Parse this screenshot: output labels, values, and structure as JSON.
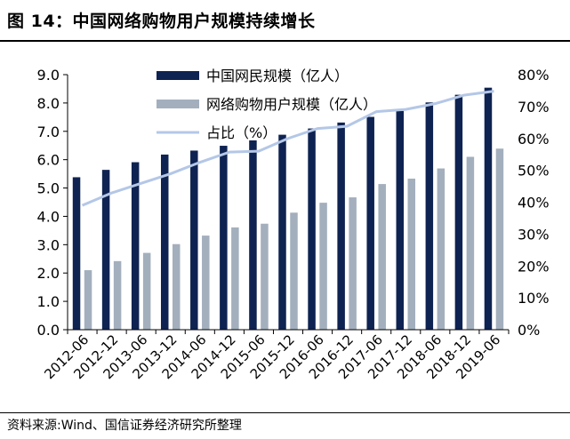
{
  "figure": {
    "title": "图 14：中国网络购物用户规模持续增长",
    "source": "资料来源:Wind、国信证券经济研究所整理"
  },
  "colors": {
    "netizens": "#0f2352",
    "shoppers": "#a3afbd",
    "share": "#b4c7e7"
  },
  "chart_data": {
    "type": "bar",
    "title": "中国网络购物用户规模持续增长",
    "categories": [
      "2012-06",
      "2012-12",
      "2013-06",
      "2013-12",
      "2014-06",
      "2014-12",
      "2015-06",
      "2015-12",
      "2016-06",
      "2016-12",
      "2017-06",
      "2017-12",
      "2018-06",
      "2018-12",
      "2019-06"
    ],
    "series": [
      {
        "name": "中国网民规模（亿人）",
        "axis": "left",
        "kind": "bar",
        "values": [
          5.38,
          5.64,
          5.91,
          6.18,
          6.32,
          6.49,
          6.68,
          6.88,
          7.1,
          7.31,
          7.51,
          7.72,
          8.02,
          8.29,
          8.54
        ]
      },
      {
        "name": "网络购物用户规模（亿人）",
        "axis": "left",
        "kind": "bar",
        "values": [
          2.1,
          2.42,
          2.71,
          3.02,
          3.32,
          3.61,
          3.74,
          4.13,
          4.48,
          4.67,
          5.14,
          5.33,
          5.69,
          6.1,
          6.39
        ]
      },
      {
        "name": "占比（%）",
        "axis": "right",
        "kind": "line",
        "values": [
          39.0,
          42.9,
          45.9,
          48.9,
          52.5,
          55.7,
          56.0,
          60.0,
          63.1,
          63.8,
          68.4,
          69.1,
          70.9,
          73.6,
          74.8
        ]
      }
    ],
    "left_axis": {
      "ylim": [
        0,
        9
      ],
      "ticks": [
        "0.0",
        "1.0",
        "2.0",
        "3.0",
        "4.0",
        "5.0",
        "6.0",
        "7.0",
        "8.0",
        "9.0"
      ]
    },
    "right_axis": {
      "ylim": [
        0,
        80
      ],
      "ticks": [
        "0%",
        "10%",
        "20%",
        "30%",
        "40%",
        "50%",
        "60%",
        "70%",
        "80%"
      ]
    },
    "legend_position": "top-center",
    "grid": false
  }
}
